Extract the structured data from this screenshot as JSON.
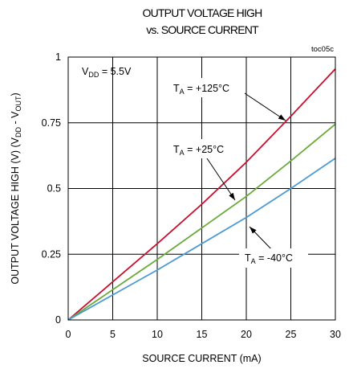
{
  "chart_data": {
    "type": "line",
    "title_line1": "OUTPUT VOLTAGE HIGH",
    "title_line2": "vs. SOURCE CURRENT",
    "figure_tag": "toc05c",
    "xlabel": "SOURCE CURRENT (mA)",
    "ylabel": {
      "prefix": "OUTPUT VOLTAGE HIGH (V) (V",
      "sub1": "DD",
      "mid": " - V",
      "sub2": "OUT",
      "suffix": ")"
    },
    "xlim": [
      0,
      30
    ],
    "ylim": [
      0,
      1
    ],
    "x_ticks": [
      0,
      5,
      10,
      15,
      20,
      25,
      30
    ],
    "y_ticks": [
      0,
      0.25,
      0.5,
      0.75,
      1
    ],
    "y_tick_labels": [
      "0",
      "0.25",
      "0.5",
      "0.75",
      "1"
    ],
    "grid": true,
    "conditions": {
      "vdd": {
        "main": "V",
        "sub": "DD",
        "value": " = 5.5V"
      }
    },
    "series": [
      {
        "label": {
          "main": "T",
          "sub": "A",
          "value": " = +125°C"
        },
        "color": "#c8102e",
        "x": [
          0,
          5,
          10,
          15,
          20,
          25,
          30
        ],
        "y": [
          0,
          0.145,
          0.29,
          0.44,
          0.6,
          0.775,
          0.955
        ]
      },
      {
        "label": {
          "main": "T",
          "sub": "A",
          "value": " = +25°C"
        },
        "color": "#6aaa3a",
        "x": [
          0,
          5,
          10,
          15,
          20,
          25,
          30
        ],
        "y": [
          0,
          0.115,
          0.23,
          0.35,
          0.47,
          0.605,
          0.745
        ]
      },
      {
        "label": {
          "main": "T",
          "sub": "A",
          "value": " = -40°C"
        },
        "color": "#4a9ad6",
        "x": [
          0,
          5,
          10,
          15,
          20,
          25,
          30
        ],
        "y": [
          0,
          0.095,
          0.19,
          0.29,
          0.39,
          0.5,
          0.615
        ]
      }
    ]
  }
}
